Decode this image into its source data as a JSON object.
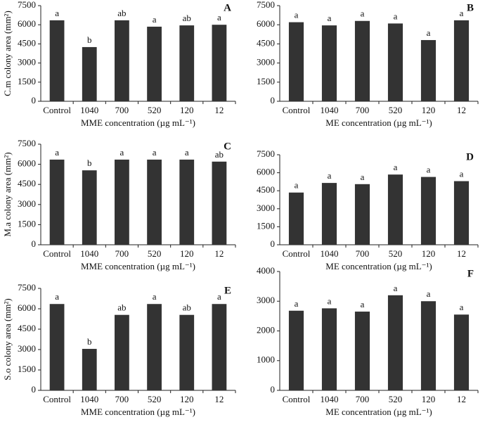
{
  "chart_data": [
    {
      "type": "bar",
      "panel": "A",
      "y_label": "C.m colony area (mm²)",
      "x_label": "MME concentration (µg mL⁻¹)",
      "categories": [
        "Control",
        "1040",
        "700",
        "520",
        "120",
        "12"
      ],
      "values": [
        6350,
        4250,
        6350,
        5850,
        5950,
        6000
      ],
      "significance": [
        "a",
        "b",
        "ab",
        "a",
        "ab",
        "a"
      ],
      "color": "#333333",
      "ylim": [
        0,
        7500
      ],
      "yticks": [
        0,
        1500,
        3000,
        4500,
        6000,
        7500
      ]
    },
    {
      "type": "bar",
      "panel": "B",
      "x_label": "ME concentration (µg mL⁻¹)",
      "categories": [
        "Control",
        "1040",
        "700",
        "520",
        "120",
        "12"
      ],
      "values": [
        6200,
        5950,
        6300,
        6100,
        4800,
        6350
      ],
      "significance": [
        "a",
        "a",
        "a",
        "a",
        "a",
        "a"
      ],
      "color": "#333333",
      "ylim": [
        0,
        7500
      ],
      "yticks": [
        0,
        1500,
        3000,
        4500,
        6000,
        7500
      ]
    },
    {
      "type": "bar",
      "panel": "C",
      "y_label": "M.a colony area (mm²)",
      "x_label": "MME concentration (µg mL⁻¹)",
      "categories": [
        "Control",
        "1040",
        "700",
        "520",
        "120",
        "12"
      ],
      "values": [
        6350,
        5550,
        6350,
        6350,
        6350,
        6200
      ],
      "significance": [
        "a",
        "b",
        "a",
        "a",
        "a",
        "ab"
      ],
      "color": "#333333",
      "ylim": [
        0,
        7500
      ],
      "yticks": [
        0,
        1500,
        3000,
        4500,
        6000,
        7500
      ]
    },
    {
      "type": "bar",
      "panel": "D",
      "x_label": "ME concentration (µg mL⁻¹)",
      "categories": [
        "Control",
        "1040",
        "700",
        "520",
        "120",
        "12"
      ],
      "values": [
        4350,
        5150,
        5050,
        5850,
        5650,
        5300
      ],
      "significance": [
        "a",
        "a",
        "a",
        "a",
        "a",
        "a"
      ],
      "color": "#333333",
      "ylim": [
        0,
        7500
      ],
      "yticks": [
        0,
        1500,
        3000,
        4500,
        6000,
        7500
      ]
    },
    {
      "type": "bar",
      "panel": "E",
      "y_label": "S.o colony area (mm²)",
      "x_label": "MME concentration (µg mL⁻¹)",
      "categories": [
        "Control",
        "1040",
        "700",
        "520",
        "120",
        "12"
      ],
      "values": [
        6350,
        3050,
        5550,
        6350,
        5550,
        6350
      ],
      "significance": [
        "a",
        "b",
        "ab",
        "a",
        "ab",
        "a"
      ],
      "color": "#333333",
      "ylim": [
        0,
        7500
      ],
      "yticks": [
        0,
        1500,
        3000,
        4500,
        6000,
        7500
      ]
    },
    {
      "type": "bar",
      "panel": "F",
      "x_label": "ME concentration (µg mL⁻¹)",
      "categories": [
        "Control",
        "1040",
        "700",
        "520",
        "120",
        "12"
      ],
      "values": [
        2680,
        2760,
        2650,
        3200,
        3000,
        2550
      ],
      "significance": [
        "a",
        "a",
        "a",
        "a",
        "a",
        "a"
      ],
      "color": "#333333",
      "ylim": [
        0,
        4000
      ],
      "yticks": [
        0,
        1000,
        2000,
        3000,
        4000
      ]
    }
  ]
}
